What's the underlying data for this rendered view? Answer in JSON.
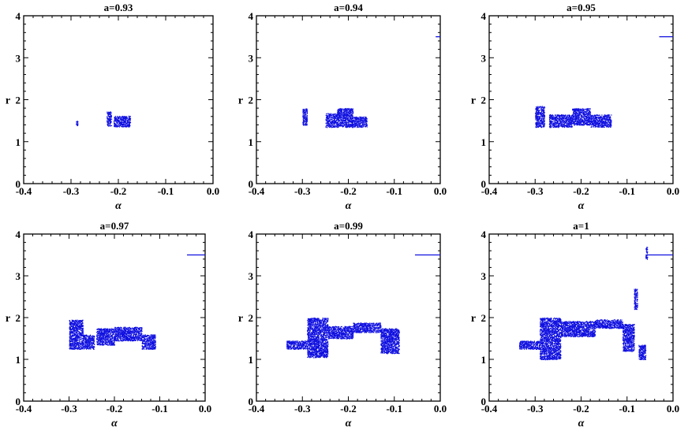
{
  "chart_data": [
    {
      "type": "scatter",
      "title": "a=0.93",
      "xlabel": "α",
      "ylabel": "r",
      "xlim": [
        -0.4,
        0.0
      ],
      "ylim": [
        0,
        4
      ],
      "xticks": [
        "-0.4",
        "-0.3",
        "-0.2",
        "-0.1",
        "0.0"
      ],
      "yticks": [
        "0",
        "1",
        "2",
        "3",
        "4"
      ],
      "color": "#1010e0",
      "clusters": [
        {
          "x": [
            -0.29,
            -0.286
          ],
          "y": [
            1.38,
            1.5
          ]
        },
        {
          "x": [
            -0.225,
            -0.215
          ],
          "y": [
            1.38,
            1.72
          ]
        },
        {
          "x": [
            -0.21,
            -0.175
          ],
          "y": [
            1.36,
            1.62
          ]
        }
      ],
      "segments": []
    },
    {
      "type": "scatter",
      "title": "a=0.94",
      "xlabel": "α",
      "ylabel": "r",
      "xlim": [
        -0.4,
        0.0
      ],
      "ylim": [
        0,
        4
      ],
      "xticks": [
        "-0.4",
        "-0.3",
        "-0.2",
        "-0.1",
        "0.0"
      ],
      "yticks": [
        "0",
        "1",
        "2",
        "3",
        "4"
      ],
      "color": "#1010e0",
      "clusters": [
        {
          "x": [
            -0.3,
            -0.29
          ],
          "y": [
            1.4,
            1.8
          ]
        },
        {
          "x": [
            -0.25,
            -0.225
          ],
          "y": [
            1.35,
            1.68
          ]
        },
        {
          "x": [
            -0.225,
            -0.19
          ],
          "y": [
            1.35,
            1.8
          ]
        },
        {
          "x": [
            -0.19,
            -0.16
          ],
          "y": [
            1.35,
            1.6
          ]
        }
      ],
      "segments": [
        {
          "x": [
            -0.01,
            0.0
          ],
          "y": 3.5
        }
      ]
    },
    {
      "type": "scatter",
      "title": "a=0.95",
      "xlabel": "α",
      "ylabel": "r",
      "xlim": [
        -0.4,
        0.0
      ],
      "ylim": [
        0,
        4
      ],
      "xticks": [
        "-0.4",
        "-0.3",
        "-0.2",
        "-0.1",
        "0.0"
      ],
      "yticks": [
        "0",
        "1",
        "2",
        "3",
        "4"
      ],
      "color": "#1010e0",
      "clusters": [
        {
          "x": [
            -0.3,
            -0.28
          ],
          "y": [
            1.35,
            1.85
          ]
        },
        {
          "x": [
            -0.27,
            -0.22
          ],
          "y": [
            1.35,
            1.65
          ]
        },
        {
          "x": [
            -0.22,
            -0.18
          ],
          "y": [
            1.4,
            1.8
          ]
        },
        {
          "x": [
            -0.18,
            -0.135
          ],
          "y": [
            1.35,
            1.65
          ]
        }
      ],
      "segments": [
        {
          "x": [
            -0.03,
            0.0
          ],
          "y": 3.5
        }
      ]
    },
    {
      "type": "scatter",
      "title": "a=0.97",
      "xlabel": "α",
      "ylabel": "r",
      "xlim": [
        -0.4,
        0.0
      ],
      "ylim": [
        0,
        4
      ],
      "xticks": [
        "-0.4",
        "-0.3",
        "-0.2",
        "-0.1",
        "0.0"
      ],
      "yticks": [
        "0",
        "1",
        "2",
        "3",
        "4"
      ],
      "color": "#1010e0",
      "clusters": [
        {
          "x": [
            -0.3,
            -0.27
          ],
          "y": [
            1.25,
            1.95
          ]
        },
        {
          "x": [
            -0.27,
            -0.245
          ],
          "y": [
            1.25,
            1.6
          ]
        },
        {
          "x": [
            -0.24,
            -0.2
          ],
          "y": [
            1.35,
            1.75
          ]
        },
        {
          "x": [
            -0.2,
            -0.14
          ],
          "y": [
            1.45,
            1.78
          ]
        },
        {
          "x": [
            -0.14,
            -0.11
          ],
          "y": [
            1.25,
            1.6
          ]
        }
      ],
      "segments": [
        {
          "x": [
            -0.04,
            0.0
          ],
          "y": 3.5
        }
      ]
    },
    {
      "type": "scatter",
      "title": "a=0.99",
      "xlabel": "α",
      "ylabel": "r",
      "xlim": [
        -0.4,
        0.0
      ],
      "ylim": [
        0,
        4
      ],
      "xticks": [
        "-0.4",
        "-0.3",
        "-0.2",
        "-0.1",
        "0.0"
      ],
      "yticks": [
        "0",
        "1",
        "2",
        "3",
        "4"
      ],
      "color": "#1010e0",
      "clusters": [
        {
          "x": [
            -0.335,
            -0.29
          ],
          "y": [
            1.25,
            1.45
          ]
        },
        {
          "x": [
            -0.29,
            -0.245
          ],
          "y": [
            1.05,
            2.0
          ]
        },
        {
          "x": [
            -0.245,
            -0.19
          ],
          "y": [
            1.5,
            1.8
          ]
        },
        {
          "x": [
            -0.19,
            -0.13
          ],
          "y": [
            1.65,
            1.88
          ]
        },
        {
          "x": [
            -0.13,
            -0.09
          ],
          "y": [
            1.15,
            1.75
          ]
        }
      ],
      "segments": [
        {
          "x": [
            -0.055,
            0.0
          ],
          "y": 3.5
        }
      ]
    },
    {
      "type": "scatter",
      "title": "a=1",
      "xlabel": "α",
      "ylabel": "r",
      "xlim": [
        -0.4,
        0.0
      ],
      "ylim": [
        0,
        4
      ],
      "xticks": [
        "-0.4",
        "-0.3",
        "-0.2",
        "-0.1",
        "0.0"
      ],
      "yticks": [
        "0",
        "1",
        "2",
        "3",
        "4"
      ],
      "color": "#1010e0",
      "clusters": [
        {
          "x": [
            -0.335,
            -0.29
          ],
          "y": [
            1.25,
            1.45
          ]
        },
        {
          "x": [
            -0.29,
            -0.245
          ],
          "y": [
            1.0,
            2.0
          ]
        },
        {
          "x": [
            -0.245,
            -0.17
          ],
          "y": [
            1.55,
            1.92
          ]
        },
        {
          "x": [
            -0.17,
            -0.11
          ],
          "y": [
            1.75,
            1.96
          ]
        },
        {
          "x": [
            -0.11,
            -0.085
          ],
          "y": [
            1.2,
            1.85
          ]
        },
        {
          "x": [
            -0.085,
            -0.078
          ],
          "y": [
            2.2,
            2.7
          ]
        },
        {
          "x": [
            -0.075,
            -0.06
          ],
          "y": [
            1.0,
            1.35
          ]
        },
        {
          "x": [
            -0.06,
            -0.056
          ],
          "y": [
            3.4,
            3.7
          ]
        }
      ],
      "segments": [
        {
          "x": [
            -0.058,
            0.0
          ],
          "y": 3.5
        }
      ]
    }
  ]
}
